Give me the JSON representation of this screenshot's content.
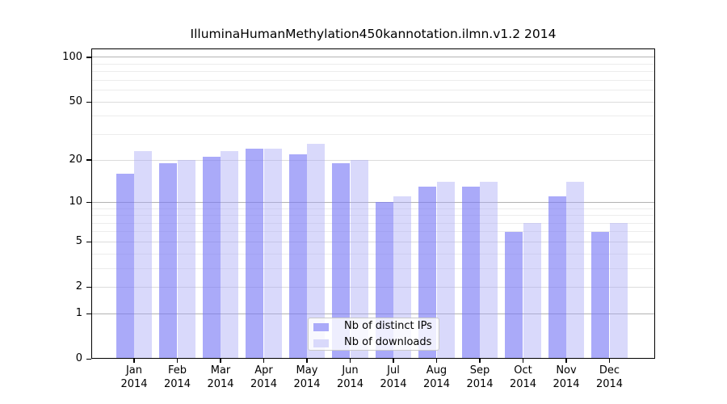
{
  "chart_data": {
    "type": "bar",
    "title": "IlluminaHumanMethylation450kannotation.ilmn.v1.2 2014",
    "xlabel": "",
    "ylabel": "",
    "y_scale": "log10(value+1)",
    "y_ticks": [
      0,
      1,
      2,
      5,
      10,
      20,
      50,
      100
    ],
    "ylim": [
      0,
      115
    ],
    "grid": true,
    "legend_position": "bottom-center",
    "months": [
      "Jan",
      "Feb",
      "Mar",
      "Apr",
      "May",
      "Jun",
      "Jul",
      "Aug",
      "Sep",
      "Oct",
      "Nov",
      "Dec"
    ],
    "year": "2014",
    "series": [
      {
        "name": "Nb of distinct IPs",
        "color": "rgba(118,118,245,0.62)",
        "legend_color": "#aaaaf9",
        "values": [
          16,
          19,
          21,
          24,
          22,
          19,
          10,
          13,
          13,
          6,
          11,
          6
        ]
      },
      {
        "name": "Nb of downloads",
        "color": "rgba(165,165,245,0.42)",
        "legend_color": "#d9d9fb",
        "values": [
          23,
          20,
          23,
          24,
          26,
          20,
          11,
          14,
          14,
          7,
          14,
          7
        ]
      }
    ]
  }
}
